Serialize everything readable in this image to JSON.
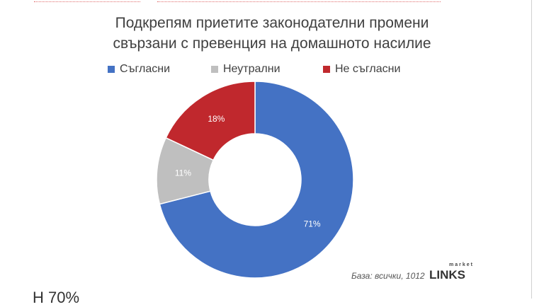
{
  "chart_data": {
    "type": "pie",
    "variant": "donut",
    "title_line1": "Подкрепям приетите законодателни промени",
    "title_line2": "свързани с превенция на домашното насилие",
    "categories": [
      "Съгласни",
      "Неутрални",
      "Не съгласни"
    ],
    "values": [
      71,
      11,
      18
    ],
    "labels": [
      "71%",
      "11%",
      "18%"
    ],
    "colors": [
      "#4472c4",
      "#bfbfbf",
      "#c0282d"
    ],
    "legend_position": "top"
  },
  "footnote": "База: всички, 1012",
  "logo": {
    "small": "market",
    "main": "LINKS"
  },
  "bottom_text": "Н   70%"
}
